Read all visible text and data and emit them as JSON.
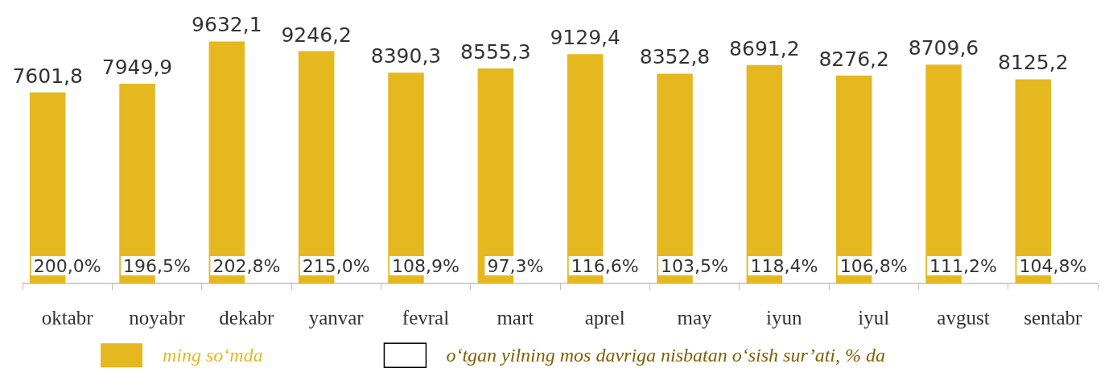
{
  "chart_data": {
    "type": "bar",
    "categories": [
      "oktabr",
      "noyabr",
      "dekabr",
      "yanvar",
      "fevral",
      "mart",
      "aprel",
      "may",
      "iyun",
      "iyul",
      "avgust",
      "sentabr"
    ],
    "series": [
      {
        "name": "ming so‘mda",
        "color": "#e6b820",
        "values": [
          7601.8,
          7949.9,
          9632.1,
          9246.2,
          8390.3,
          8555.3,
          9129.4,
          8352.8,
          8691.2,
          8276.2,
          8709.6,
          8125.2
        ],
        "value_labels": [
          "7601,8",
          "7949,9",
          "9632,1",
          "9246,2",
          "8390,3",
          "8555,3",
          "9129,4",
          "8352,8",
          "8691,2",
          "8276,2",
          "8709,6",
          "8125,2"
        ]
      },
      {
        "name": "o‘tgan yilning mos davriga nisbatan o‘sish sur’ati, % da",
        "color": "#ffffff",
        "values": [
          null,
          null,
          null,
          null,
          null,
          null,
          null,
          null,
          null,
          null,
          null,
          null
        ]
      }
    ],
    "annotations": [
      {
        "text": "200,0%",
        "x": "oktabr"
      },
      {
        "text": "196,5%",
        "x": "noyabr"
      },
      {
        "text": "202,8%",
        "x": "dekabr"
      },
      {
        "text": "215,0%",
        "x": "yanvar"
      },
      {
        "text": "108,9%",
        "x": "fevral"
      },
      {
        "text": "97,3%",
        "x": "mart"
      },
      {
        "text": "116,6%",
        "x": "aprel"
      },
      {
        "text": "103,5%",
        "x": "may"
      },
      {
        "text": "118,4%",
        "x": "iyun"
      },
      {
        "text": "106,8%",
        "x": "iyul"
      },
      {
        "text": "111,2%",
        "x": "avgust"
      },
      {
        "text": "104,8%",
        "x": "sentabr"
      }
    ],
    "tick_labels": "x",
    "legend": "bottom",
    "grid": false
  }
}
